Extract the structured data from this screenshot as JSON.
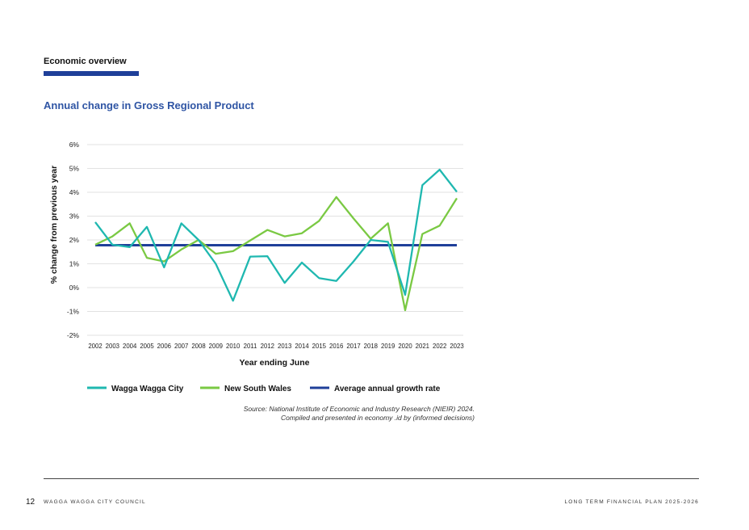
{
  "header": {
    "section_label": "Economic overview",
    "chart_title": "Annual change in Gross Regional Product"
  },
  "chart_data": {
    "type": "line",
    "title": "Annual change in Gross Regional Product",
    "xlabel": "Year ending June",
    "ylabel": "% change from previous year",
    "ylim": [
      -2,
      6
    ],
    "yticks": [
      "-2%",
      "-1%",
      "0%",
      "1%",
      "2%",
      "3%",
      "4%",
      "5%",
      "6%"
    ],
    "ytick_values": [
      -2,
      -1,
      0,
      1,
      2,
      3,
      4,
      5,
      6
    ],
    "grid": true,
    "legend_position": "bottom",
    "categories": [
      "2002",
      "2003",
      "2004",
      "2005",
      "2006",
      "2007",
      "2008",
      "2009",
      "2010",
      "2011",
      "2012",
      "2013",
      "2014",
      "2015",
      "2016",
      "2017",
      "2018",
      "2019",
      "2020",
      "2021",
      "2022",
      "2023"
    ],
    "series": [
      {
        "name": "Wagga Wagga City",
        "color": "#1fb8b0",
        "values": [
          2.75,
          1.8,
          1.7,
          2.55,
          0.85,
          2.7,
          2.0,
          1.0,
          -0.55,
          1.3,
          1.32,
          0.2,
          1.05,
          0.4,
          0.28,
          1.1,
          2.0,
          1.92,
          -0.3,
          4.3,
          4.95,
          4.02
        ]
      },
      {
        "name": "New South Wales",
        "color": "#7ac943",
        "values": [
          1.8,
          2.15,
          2.7,
          1.25,
          1.1,
          1.6,
          2.0,
          1.42,
          1.53,
          1.98,
          2.42,
          2.15,
          2.28,
          2.8,
          3.8,
          2.9,
          2.05,
          2.7,
          -0.95,
          2.25,
          2.6,
          3.75
        ]
      },
      {
        "name": "Average annual growth rate",
        "color": "#1f3f99",
        "values": [
          1.78,
          1.78,
          1.78,
          1.78,
          1.78,
          1.78,
          1.78,
          1.78,
          1.78,
          1.78,
          1.78,
          1.78,
          1.78,
          1.78,
          1.78,
          1.78,
          1.78,
          1.78,
          1.78,
          1.78,
          1.78,
          1.78
        ]
      }
    ]
  },
  "source": {
    "line1": "Source: National Institute of Economic and Industry Research (NIEIR) 2024.",
    "line2": "Compiled and presented in economy .id by (informed decisions)"
  },
  "footer": {
    "page_number": "12",
    "left_text": "WAGGA WAGGA CITY COUNCIL",
    "right_text": "LONG TERM FINANCIAL PLAN 2025-2026"
  }
}
